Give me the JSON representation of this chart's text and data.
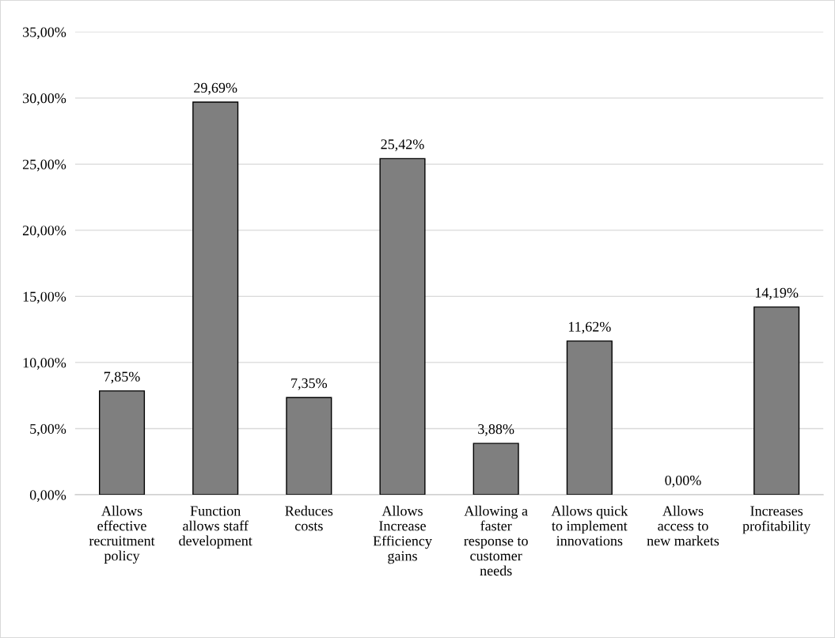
{
  "chart_data": {
    "type": "bar",
    "categories": [
      "Allows\neffective\nrecruitment\npolicy",
      "Function\nallows staff\ndevelopment",
      "Reduces\ncosts",
      "Allows\nIncrease\nEfficiency\ngains",
      "Allowing a\nfaster\nresponse to\ncustomer\nneeds",
      "Allows quick\nto implement\ninnovations",
      "Allows\naccess to\nnew markets",
      "Increases\nprofitability"
    ],
    "values": [
      7.85,
      29.69,
      7.35,
      25.42,
      3.88,
      11.62,
      0,
      14.19
    ],
    "value_labels": [
      "7,85%",
      "29,69%",
      "7,35%",
      "25,42%",
      "3,88%",
      "11,62%",
      "0,00%",
      "14,19%"
    ],
    "color": "#7f7f7f",
    "ylim": [
      0,
      35
    ],
    "yticks": [
      {
        "value": 0,
        "label": "0,00%"
      },
      {
        "value": 5,
        "label": "5,00%"
      },
      {
        "value": 10,
        "label": "10,00%"
      },
      {
        "value": 15,
        "label": "15,00%"
      },
      {
        "value": 20,
        "label": "20,00%"
      },
      {
        "value": 25,
        "label": "25,00%"
      },
      {
        "value": 30,
        "label": "30,00%"
      },
      {
        "value": 35,
        "label": "35,00%"
      }
    ],
    "grid": "y"
  }
}
